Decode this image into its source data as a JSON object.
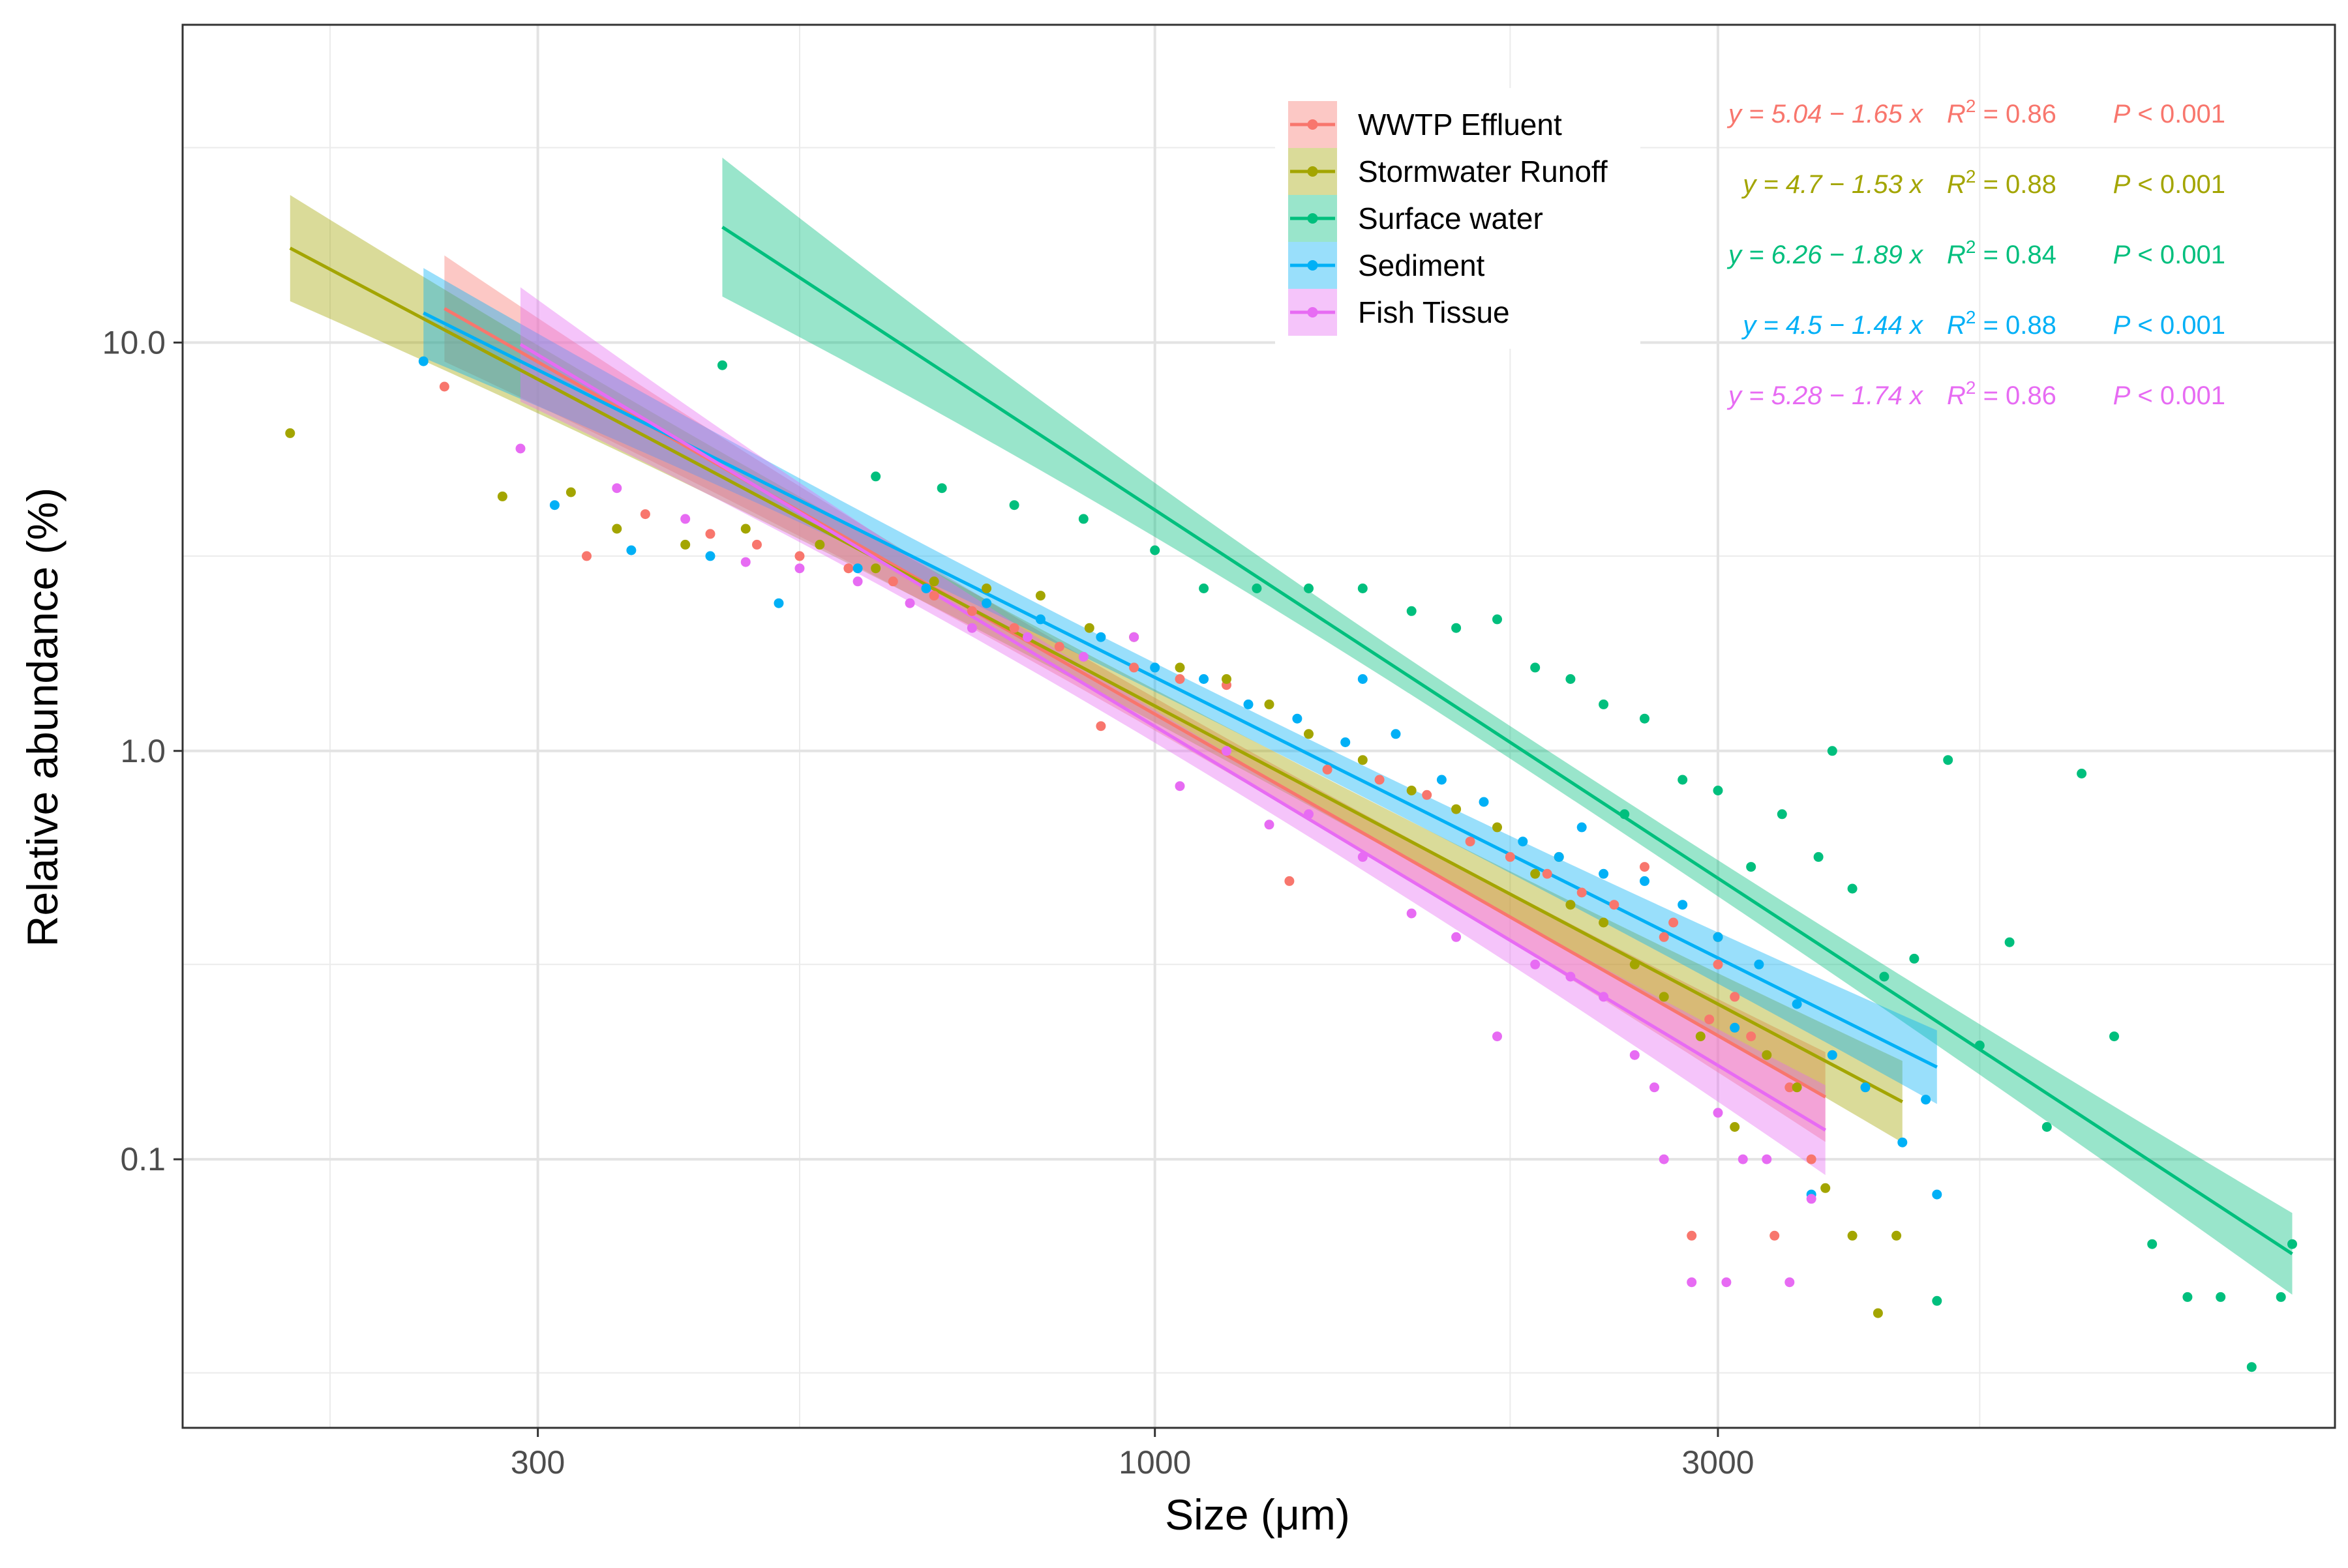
{
  "chart_data": {
    "type": "scatter",
    "xlabel": "Size (μm)",
    "ylabel": "Relative abundance (%)",
    "x_scale": "log10",
    "y_scale": "log10",
    "xlim": [
      150,
      10000
    ],
    "ylim": [
      0.022,
      60
    ],
    "x_ticks": [
      300,
      1000,
      3000
    ],
    "x_tick_labels": [
      "300",
      "1000",
      "3000"
    ],
    "y_ticks": [
      0.1,
      1,
      10
    ],
    "y_tick_labels": [
      "0.1",
      "1.0",
      "10.0"
    ],
    "grid": true,
    "legend_position": "top-right inside",
    "series": [
      {
        "name": "WWTP Effluent",
        "color": "#F8766D",
        "equation": "y = 5.04 − 1.65 x",
        "r2": "0.86",
        "p": "P < 0.001",
        "fit": {
          "intercept": 5.04,
          "slope": -1.65,
          "x_range": [
            250,
            3700
          ],
          "band_half_width_log10": [
            0.13,
            0.04,
            0.11
          ]
        },
        "points": [
          [
            250,
            7.8
          ],
          [
            330,
            3.0
          ],
          [
            370,
            3.8
          ],
          [
            420,
            3.4
          ],
          [
            460,
            3.2
          ],
          [
            500,
            3.0
          ],
          [
            550,
            2.8
          ],
          [
            600,
            2.6
          ],
          [
            650,
            2.4
          ],
          [
            700,
            2.2
          ],
          [
            760,
            2.0
          ],
          [
            830,
            1.8
          ],
          [
            900,
            1.15
          ],
          [
            960,
            1.6
          ],
          [
            1050,
            1.5
          ],
          [
            1150,
            1.45
          ],
          [
            1300,
            0.48
          ],
          [
            1400,
            0.9
          ],
          [
            1550,
            0.85
          ],
          [
            1700,
            0.78
          ],
          [
            1850,
            0.6
          ],
          [
            2000,
            0.55
          ],
          [
            2150,
            0.5
          ],
          [
            2300,
            0.45
          ],
          [
            2450,
            0.42
          ],
          [
            2600,
            0.52
          ],
          [
            2750,
            0.38
          ],
          [
            2850,
            0.065
          ],
          [
            3000,
            0.3
          ],
          [
            3100,
            0.25
          ],
          [
            3200,
            0.2
          ],
          [
            3350,
            0.065
          ],
          [
            3450,
            0.15
          ],
          [
            3600,
            0.1
          ],
          [
            2700,
            0.35
          ],
          [
            2950,
            0.22
          ]
        ]
      },
      {
        "name": "Stormwater Runoff",
        "color": "#A3A500",
        "equation": "y = 4.7 − 1.53 x",
        "r2": "0.88",
        "p": "P < 0.001",
        "fit": {
          "intercept": 4.7,
          "slope": -1.53,
          "x_range": [
            185,
            4300
          ],
          "band_half_width_log10": [
            0.13,
            0.04,
            0.1
          ]
        },
        "points": [
          [
            185,
            6.0
          ],
          [
            280,
            4.2
          ],
          [
            320,
            4.3
          ],
          [
            350,
            3.5
          ],
          [
            400,
            3.2
          ],
          [
            450,
            3.5
          ],
          [
            520,
            3.2
          ],
          [
            580,
            2.8
          ],
          [
            650,
            2.6
          ],
          [
            720,
            2.5
          ],
          [
            800,
            2.4
          ],
          [
            880,
            2.0
          ],
          [
            960,
            1.9
          ],
          [
            1050,
            1.6
          ],
          [
            1150,
            1.5
          ],
          [
            1250,
            1.3
          ],
          [
            1350,
            1.1
          ],
          [
            1500,
            0.95
          ],
          [
            1650,
            0.8
          ],
          [
            1800,
            0.72
          ],
          [
            1950,
            0.65
          ],
          [
            2100,
            0.5
          ],
          [
            2250,
            0.42
          ],
          [
            2400,
            0.38
          ],
          [
            2550,
            0.3
          ],
          [
            2700,
            0.25
          ],
          [
            2900,
            0.2
          ],
          [
            3100,
            0.12
          ],
          [
            3300,
            0.18
          ],
          [
            3500,
            0.15
          ],
          [
            3700,
            0.085
          ],
          [
            3900,
            0.065
          ],
          [
            4100,
            0.042
          ],
          [
            4250,
            0.065
          ],
          [
            3000,
            0.35
          ],
          [
            2200,
            0.55
          ]
        ]
      },
      {
        "name": "Surface water",
        "color": "#00BF7D",
        "equation": "y = 6.26 − 1.89 x",
        "r2": "0.84",
        "p": "P < 0.001",
        "fit": {
          "intercept": 6.26,
          "slope": -1.89,
          "x_range": [
            430,
            9200
          ],
          "band_half_width_log10": [
            0.17,
            0.04,
            0.1
          ]
        },
        "points": [
          [
            430,
            8.8
          ],
          [
            580,
            4.7
          ],
          [
            660,
            4.4
          ],
          [
            760,
            4.0
          ],
          [
            870,
            3.7
          ],
          [
            1000,
            3.1
          ],
          [
            1100,
            2.5
          ],
          [
            1220,
            2.5
          ],
          [
            1350,
            2.5
          ],
          [
            1500,
            2.5
          ],
          [
            1650,
            2.2
          ],
          [
            1800,
            2.0
          ],
          [
            1950,
            2.1
          ],
          [
            2100,
            1.6
          ],
          [
            2250,
            1.5
          ],
          [
            2400,
            1.3
          ],
          [
            2600,
            1.2
          ],
          [
            2800,
            0.85
          ],
          [
            3000,
            0.8
          ],
          [
            3200,
            0.52
          ],
          [
            3400,
            0.7
          ],
          [
            3650,
            0.55
          ],
          [
            3900,
            0.46
          ],
          [
            4150,
            0.28
          ],
          [
            4400,
            0.31
          ],
          [
            4700,
            0.95
          ],
          [
            5000,
            0.19
          ],
          [
            5300,
            0.34
          ],
          [
            5700,
            0.12
          ],
          [
            6100,
            0.88
          ],
          [
            6500,
            0.2
          ],
          [
            7000,
            0.062
          ],
          [
            7500,
            0.046
          ],
          [
            8000,
            0.046
          ],
          [
            8500,
            0.031
          ],
          [
            9000,
            0.046
          ],
          [
            9200,
            0.062
          ],
          [
            4600,
            0.045
          ],
          [
            3750,
            1.0
          ],
          [
            2500,
            0.7
          ]
        ]
      },
      {
        "name": "Sediment",
        "color": "#00B0F6",
        "equation": "y = 4.5 − 1.44 x",
        "r2": "0.88",
        "p": "P < 0.001",
        "fit": {
          "intercept": 4.5,
          "slope": -1.44,
          "x_range": [
            240,
            4600
          ],
          "band_half_width_log10": [
            0.11,
            0.035,
            0.09
          ]
        },
        "points": [
          [
            240,
            9.0
          ],
          [
            310,
            4.0
          ],
          [
            360,
            3.1
          ],
          [
            420,
            3.0
          ],
          [
            480,
            2.3
          ],
          [
            560,
            2.8
          ],
          [
            640,
            2.5
          ],
          [
            720,
            2.3
          ],
          [
            800,
            2.1
          ],
          [
            900,
            1.9
          ],
          [
            1000,
            1.6
          ],
          [
            1100,
            1.5
          ],
          [
            1200,
            1.3
          ],
          [
            1320,
            1.2
          ],
          [
            1450,
            1.05
          ],
          [
            1600,
            1.1
          ],
          [
            1750,
            0.85
          ],
          [
            1900,
            0.75
          ],
          [
            2050,
            0.6
          ],
          [
            2200,
            0.55
          ],
          [
            2400,
            0.5
          ],
          [
            2600,
            0.48
          ],
          [
            2800,
            0.42
          ],
          [
            3000,
            0.35
          ],
          [
            3250,
            0.3
          ],
          [
            3500,
            0.24
          ],
          [
            3750,
            0.18
          ],
          [
            4000,
            0.15
          ],
          [
            4300,
            0.11
          ],
          [
            4500,
            0.14
          ],
          [
            4600,
            0.082
          ],
          [
            3600,
            0.082
          ],
          [
            3100,
            0.21
          ],
          [
            2300,
            0.65
          ],
          [
            1500,
            1.5
          ]
        ]
      },
      {
        "name": "Fish Tissue",
        "color": "#E76BF3",
        "equation": "y = 5.28 − 1.74 x",
        "r2": "0.86",
        "p": "P < 0.001",
        "fit": {
          "intercept": 5.28,
          "slope": -1.74,
          "x_range": [
            290,
            3700
          ],
          "band_half_width_log10": [
            0.14,
            0.04,
            0.11
          ]
        },
        "points": [
          [
            290,
            5.5
          ],
          [
            350,
            4.4
          ],
          [
            400,
            3.7
          ],
          [
            450,
            2.9
          ],
          [
            500,
            2.8
          ],
          [
            560,
            2.6
          ],
          [
            620,
            2.3
          ],
          [
            700,
            2.0
          ],
          [
            780,
            1.9
          ],
          [
            870,
            1.7
          ],
          [
            960,
            1.9
          ],
          [
            1050,
            0.82
          ],
          [
            1150,
            1.0
          ],
          [
            1250,
            0.66
          ],
          [
            1350,
            0.7
          ],
          [
            1500,
            0.55
          ],
          [
            1650,
            0.4
          ],
          [
            1800,
            0.35
          ],
          [
            1950,
            0.2
          ],
          [
            2100,
            0.3
          ],
          [
            2250,
            0.28
          ],
          [
            2400,
            0.25
          ],
          [
            2550,
            0.18
          ],
          [
            2700,
            0.1
          ],
          [
            2850,
            0.05
          ],
          [
            3000,
            0.13
          ],
          [
            3150,
            0.1
          ],
          [
            3300,
            0.1
          ],
          [
            3450,
            0.05
          ],
          [
            3600,
            0.08
          ],
          [
            2650,
            0.15
          ],
          [
            3050,
            0.05
          ]
        ]
      }
    ]
  }
}
